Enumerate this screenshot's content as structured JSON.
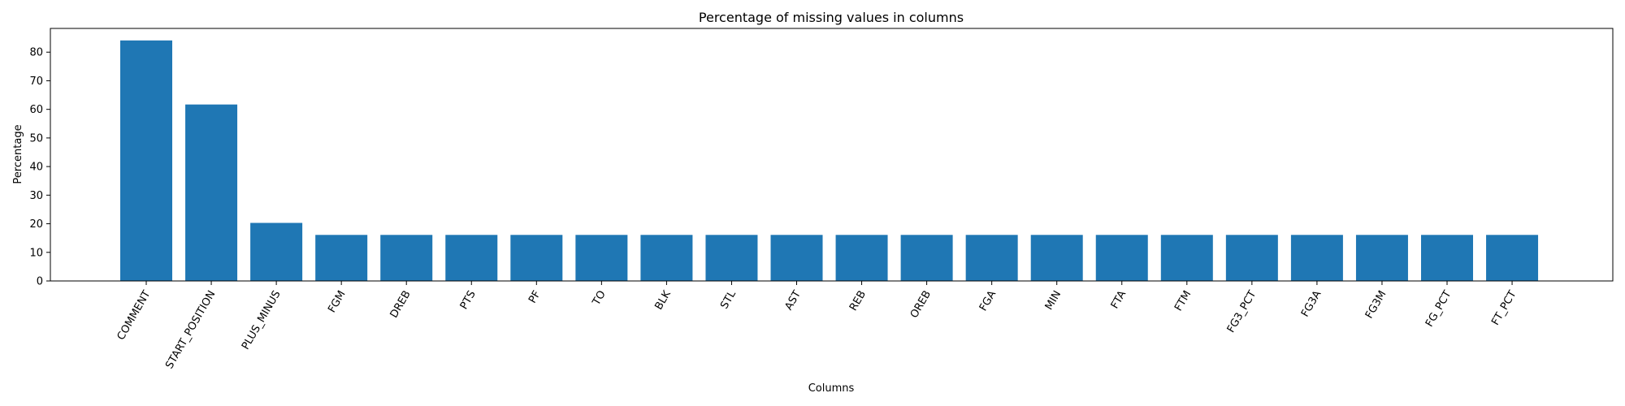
{
  "chart_data": {
    "type": "bar",
    "title": "Percentage of missing values in columns",
    "xlabel": "Columns",
    "ylabel": "Percentage",
    "categories": [
      "COMMENT",
      "START_POSITION",
      "PLUS_MINUS",
      "FGM",
      "DREB",
      "PTS",
      "PF",
      "TO",
      "BLK",
      "STL",
      "AST",
      "REB",
      "OREB",
      "FGA",
      "MIN",
      "FTA",
      "FTM",
      "FG3_PCT",
      "FG3A",
      "FG3M",
      "FG_PCT",
      "FT_PCT"
    ],
    "values": [
      84.1,
      61.7,
      20.3,
      16.1,
      16.1,
      16.1,
      16.1,
      16.1,
      16.1,
      16.1,
      16.1,
      16.1,
      16.1,
      16.1,
      16.1,
      16.1,
      16.1,
      16.1,
      16.1,
      16.1,
      16.1,
      16.1
    ],
    "yticks": [
      0,
      10,
      20,
      30,
      40,
      50,
      60,
      70,
      80
    ],
    "ylim": [
      0,
      88.3
    ],
    "bar_color": "#1f77b4",
    "grid": false,
    "legend": "none"
  }
}
